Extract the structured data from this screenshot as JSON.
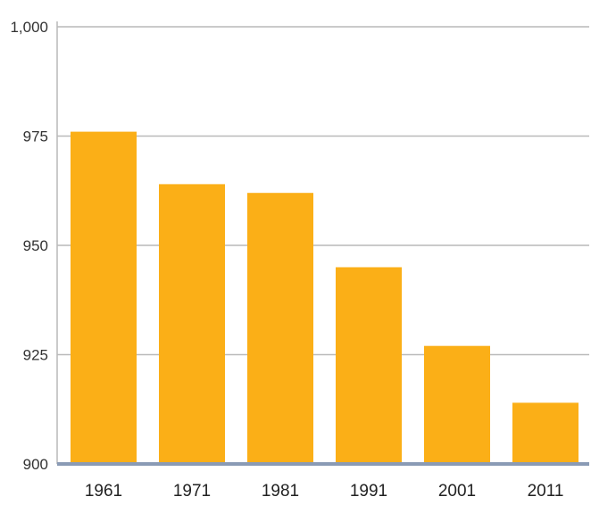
{
  "chart_data": {
    "type": "bar",
    "categories": [
      "1961",
      "1971",
      "1981",
      "1991",
      "2001",
      "2011"
    ],
    "values": [
      976,
      964,
      962,
      945,
      927,
      914
    ],
    "ylim": [
      900,
      1000
    ],
    "yticks": [
      900,
      925,
      950,
      975,
      1000
    ],
    "ytick_labels": [
      "900",
      "925",
      "950",
      "975",
      "1,000"
    ],
    "grid": true,
    "legend": "none",
    "colors": {
      "bar": "#FBAF17",
      "grid": "#b9b9b9",
      "baseline": "#8a9bb5",
      "text": "#333333"
    }
  }
}
